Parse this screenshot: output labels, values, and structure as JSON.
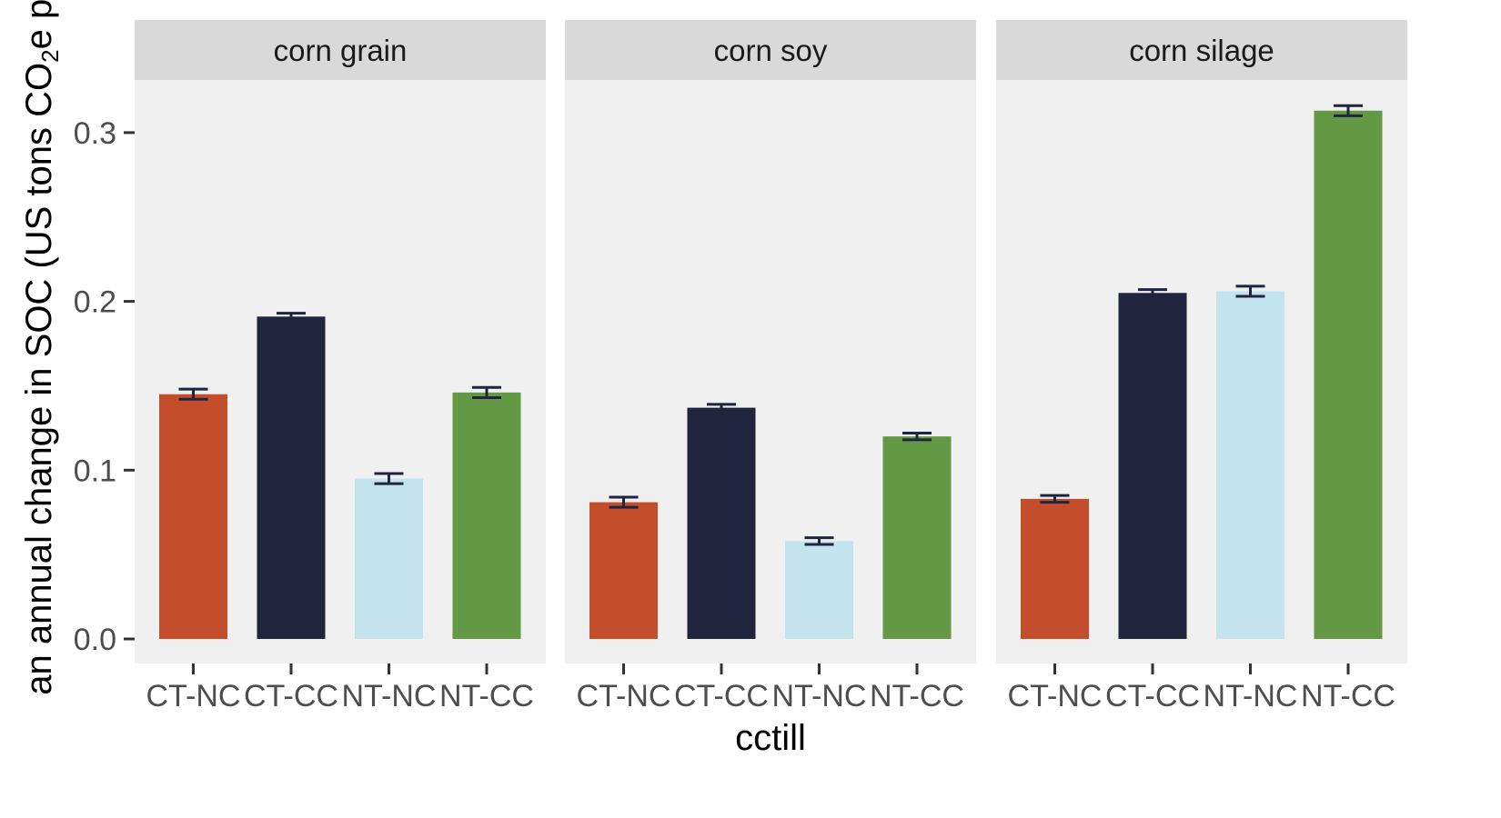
{
  "chart_data": {
    "type": "bar",
    "xlabel": "cctill",
    "ylabel": "an annual change in SOC (US tons CO",
    "ylabel_sub": "2",
    "ylabel_tail": "e per",
    "ylim": [
      0,
      0.35
    ],
    "yticks": [
      "0.0",
      "0.1",
      "0.2",
      "0.3"
    ],
    "ytick_values": [
      0.0,
      0.1,
      0.2,
      0.3
    ],
    "categories": [
      "CT-NC",
      "CT-CC",
      "NT-NC",
      "NT-CC"
    ],
    "colors": [
      "#c44e2b",
      "#20243d",
      "#c3e4ee",
      "#639944"
    ],
    "error_color": "#20243d",
    "panel_bg": "#f0f0f0",
    "strip_bg": "#d9d9d9",
    "grid": false,
    "legend": "none",
    "facets": [
      {
        "name": "corn grain",
        "values": [
          0.145,
          0.191,
          0.095,
          0.146
        ],
        "errors": [
          0.003,
          0.002,
          0.003,
          0.003
        ]
      },
      {
        "name": "corn soy",
        "values": [
          0.081,
          0.137,
          0.058,
          0.12
        ],
        "errors": [
          0.003,
          0.002,
          0.002,
          0.002
        ]
      },
      {
        "name": "corn silage",
        "values": [
          0.083,
          0.205,
          0.206,
          0.313
        ],
        "errors": [
          0.002,
          0.002,
          0.003,
          0.003
        ]
      }
    ]
  }
}
